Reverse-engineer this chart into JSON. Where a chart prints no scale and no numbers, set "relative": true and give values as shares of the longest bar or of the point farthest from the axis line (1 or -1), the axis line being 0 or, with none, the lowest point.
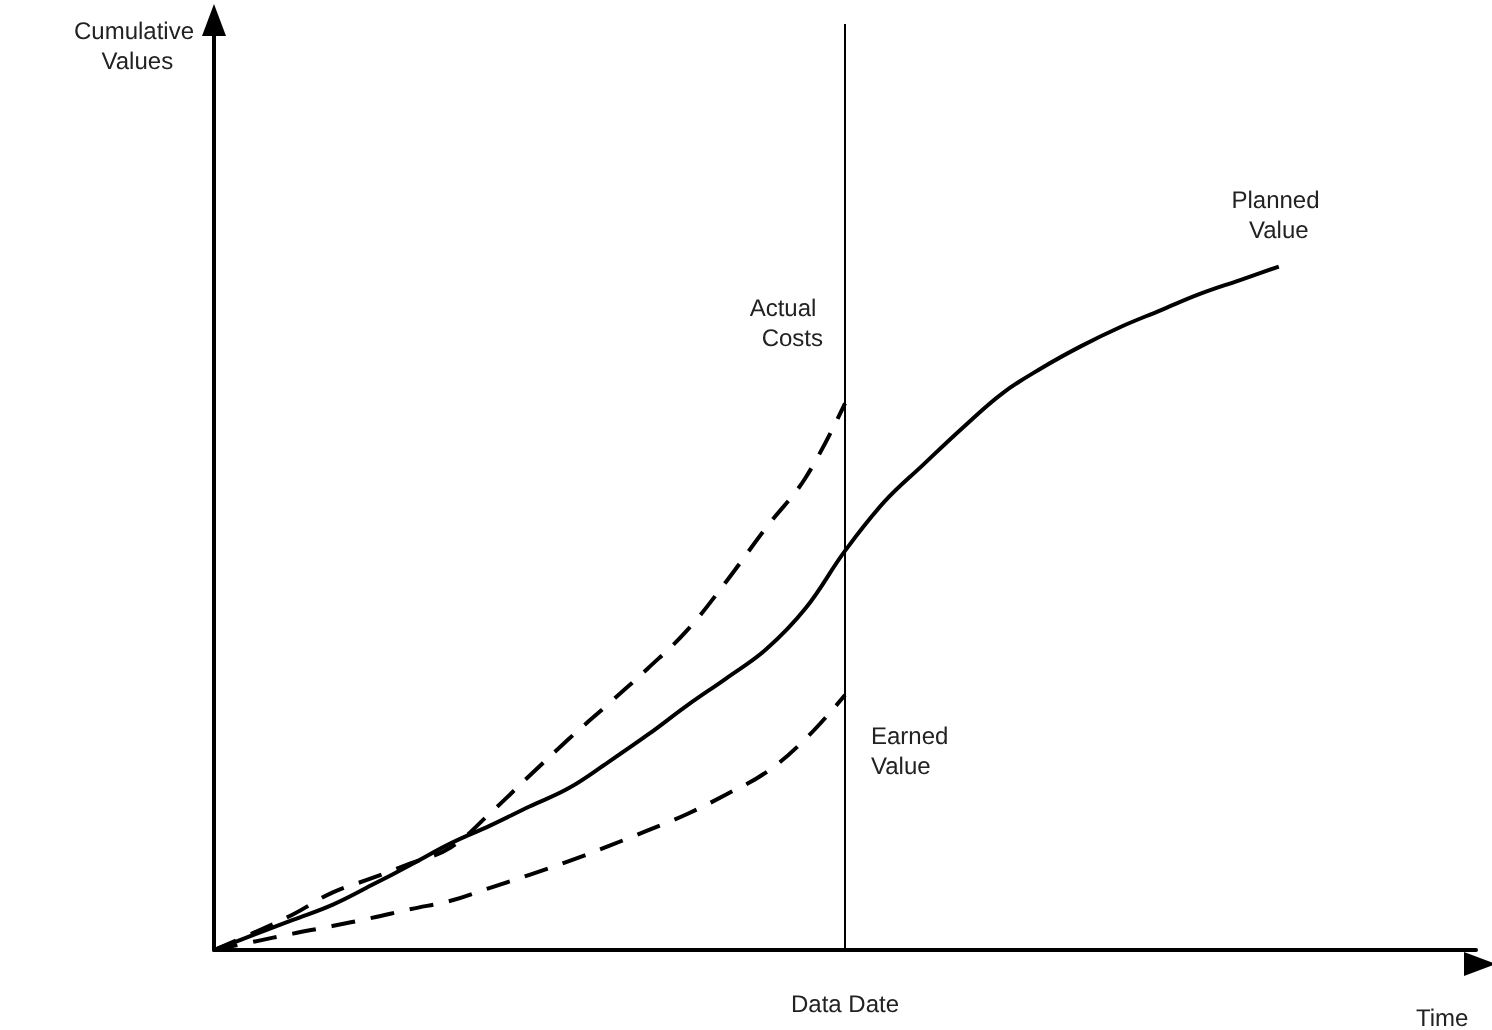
{
  "chart_data": {
    "type": "line",
    "relative": true,
    "xlabel": "Time",
    "categories": [
      null,
      null,
      null,
      null,
      null,
      null,
      null,
      null,
      null,
      null,
      null,
      null,
      null,
      null,
      null,
      null,
      null,
      null,
      null,
      null,
      null,
      null,
      null,
      null,
      null,
      null,
      null,
      null,
      null,
      null,
      null,
      null,
      null
    ],
    "series": [
      {
        "name": "Planned Value",
        "color": "#000000",
        "line_style": "solid",
        "values": [
          0,
          0.022,
          0.044,
          0.066,
          0.095,
          0.125,
          0.156,
          0.182,
          0.21,
          0.237,
          0.275,
          0.315,
          0.358,
          0.398,
          0.44,
          0.5,
          0.584,
          0.656,
          0.711,
          0.765,
          0.815,
          0.852,
          0.884,
          0.912,
          0.936,
          0.96,
          0.98,
          1,
          null,
          null,
          null,
          null,
          null
        ]
      },
      {
        "name": "Actual Costs",
        "color": "#000000",
        "line_style": "dashed",
        "values": [
          0,
          0.025,
          0.052,
          0.084,
          0.105,
          0.127,
          0.15,
          0.2,
          0.255,
          0.309,
          0.36,
          0.412,
          0.468,
          0.54,
          0.618,
          0.691,
          0.8,
          null,
          null,
          null,
          null,
          null,
          null,
          null,
          null,
          null,
          null,
          null,
          null,
          null,
          null,
          null,
          null
        ]
      },
      {
        "name": "Earned Value",
        "color": "#000000",
        "line_style": "dashed",
        "values": [
          0,
          0.012,
          0.024,
          0.035,
          0.047,
          0.06,
          0.072,
          0.091,
          0.11,
          0.13,
          0.152,
          0.175,
          0.199,
          0.228,
          0.26,
          0.309,
          0.373,
          null,
          null,
          null,
          null,
          null,
          null,
          null,
          null,
          null,
          null,
          null,
          null,
          null,
          null,
          null,
          null
        ]
      }
    ],
    "annotations": [
      "Cumulative Values",
      "Data Date"
    ],
    "marker": "none",
    "grid": false,
    "legend": false
  }
}
